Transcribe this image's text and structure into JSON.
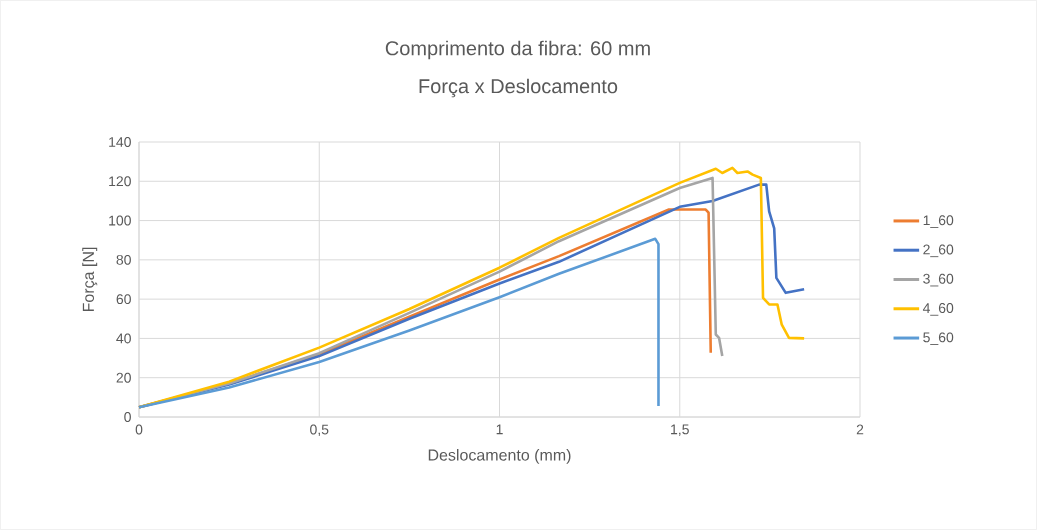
{
  "chart_data": {
    "type": "line",
    "title": "Comprimento da fibra: 60 mm",
    "subtitle": "Força x Deslocamento",
    "xlabel": "Deslocamento (mm)",
    "ylabel": "Força [N]",
    "xlim": [
      0,
      2
    ],
    "ylim": [
      0,
      140
    ],
    "xticks": [
      0,
      {
        "value": 0.5,
        "label": "0,5"
      },
      1,
      {
        "value": 1.5,
        "label": "1,5"
      },
      2
    ],
    "yticks": [
      0,
      20,
      40,
      60,
      80,
      100,
      120,
      140
    ],
    "grid": true,
    "legend": "right",
    "marker": "none",
    "line_style": "solid",
    "series": [
      {
        "name": "1_60",
        "color": "#ed7d31",
        "x": [
          0,
          0.25,
          0.5,
          0.75,
          1,
          1.165,
          1.47,
          1.572,
          1.58,
          1.586
        ],
        "values": [
          5,
          17,
          32,
          51,
          70,
          81.9,
          105.6,
          105.6,
          104,
          32.7
        ]
      },
      {
        "name": "2_60",
        "color": "#4472c4",
        "x": [
          0,
          0.25,
          0.5,
          0.75,
          1,
          1.165,
          1.5,
          1.591,
          1.72,
          1.74,
          1.748,
          1.762,
          1.768,
          1.794,
          1.845
        ],
        "values": [
          5,
          16.5,
          31,
          50,
          68,
          79,
          107,
          110,
          118.3,
          118.3,
          104.7,
          96,
          70.8,
          63.2,
          65
        ]
      },
      {
        "name": "3_60",
        "color": "#a5a5a5",
        "x": [
          0,
          0.25,
          0.5,
          0.75,
          1,
          1.165,
          1.5,
          1.591,
          1.6,
          1.609,
          1.618
        ],
        "values": [
          5,
          17,
          32.5,
          53,
          74,
          89.5,
          116.6,
          121.7,
          42,
          40.3,
          31
        ]
      },
      {
        "name": "4_60",
        "color": "#ffc000",
        "x": [
          0,
          0.25,
          0.5,
          0.75,
          1,
          1.165,
          1.276,
          1.5,
          1.6,
          1.618,
          1.646,
          1.66,
          1.688,
          1.702,
          1.725,
          1.731,
          1.748,
          1.771,
          1.783,
          1.803,
          1.845
        ],
        "values": [
          5,
          18,
          35.3,
          55,
          76,
          91.2,
          100.5,
          119.2,
          126.4,
          124.2,
          126.8,
          124.2,
          125,
          123.4,
          121.7,
          60.7,
          57.3,
          57.3,
          47,
          40.3,
          40
        ]
      },
      {
        "name": "5_60",
        "color": "#5b9bd5",
        "x": [
          0,
          0.25,
          0.5,
          0.75,
          1,
          1.165,
          1.432,
          1.441,
          1.441
        ],
        "values": [
          5,
          15,
          28,
          44,
          61,
          72.9,
          90.7,
          88,
          5.6
        ]
      }
    ]
  }
}
